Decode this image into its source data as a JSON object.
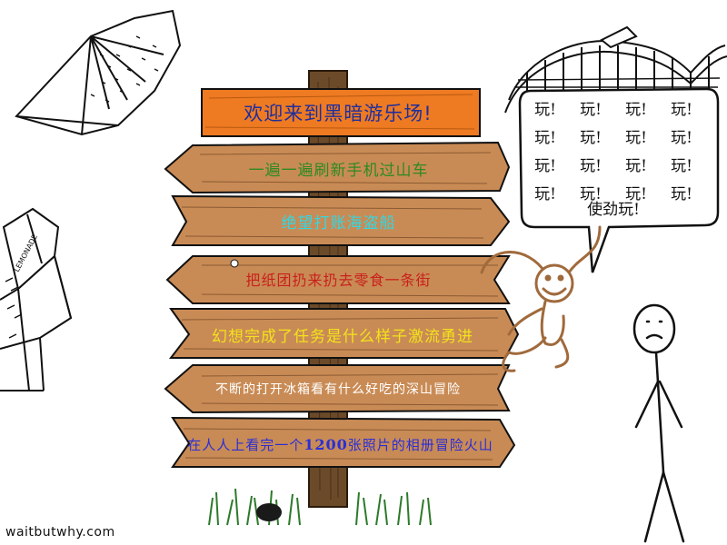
{
  "signpost": {
    "title": "欢迎来到黑暗游乐场!",
    "signs": [
      {
        "parts": [
          "一遍一遍刷新手机过山车"
        ]
      },
      {
        "parts": [
          "绝望打账海盗船"
        ]
      },
      {
        "parts": [
          "把纸团扔来扔去零食一条街"
        ]
      },
      {
        "parts": [
          "幻想完成了任务是什么样子激流勇进"
        ]
      },
      {
        "parts": [
          "不断的打开冰箱看有什么好吃的深山冒险"
        ]
      },
      {
        "parts": [
          "在人人上看完一个",
          "1200",
          "张照片的相册冒险火山"
        ]
      }
    ]
  },
  "speech_bubble": {
    "repeat_word": "玩!",
    "grid_rows": 4,
    "grid_cols": 4,
    "final": "使劲玩!"
  },
  "side_objects": {
    "lemonade_label": "LEMONADE"
  },
  "watermark": "waitbutwhy.com",
  "colors": {
    "wood": "#c98b55",
    "wood_dark": "#8a5a32",
    "title_board": "#ee7a22",
    "post": "#6b4a2a",
    "monkey": "#a06a3c",
    "grass": "#2c7a2a"
  }
}
